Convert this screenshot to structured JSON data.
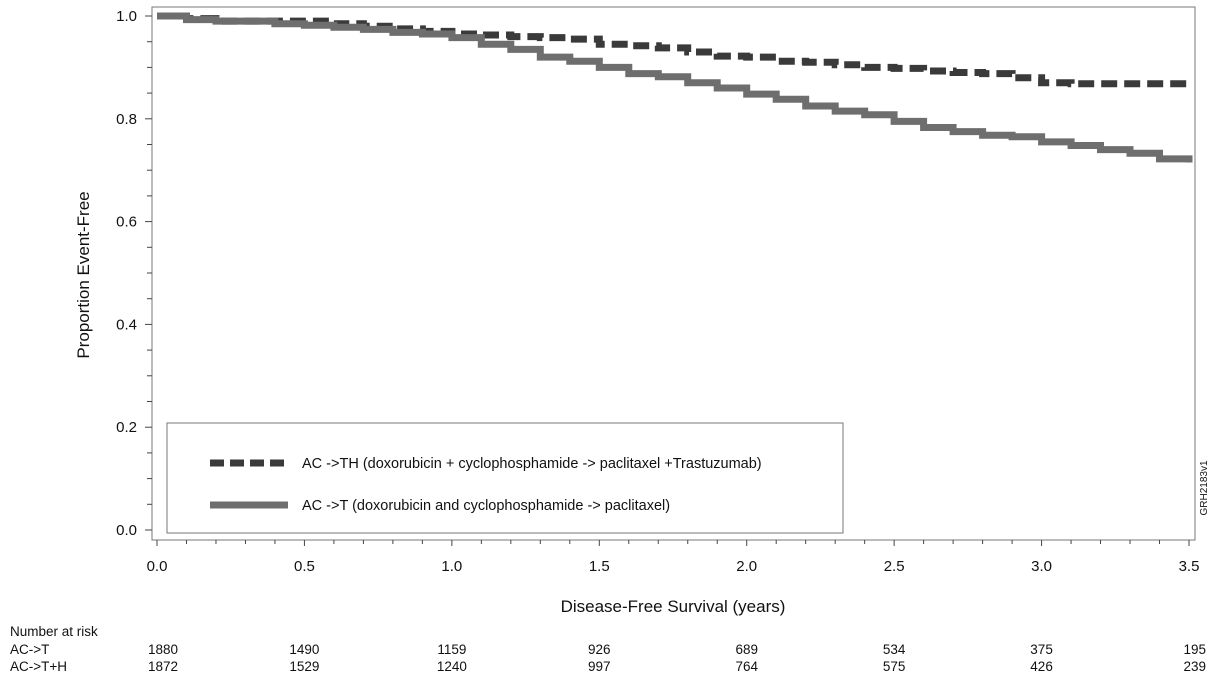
{
  "chart_data": {
    "type": "line",
    "title": "",
    "xlabel": "Disease-Free Survival (years)",
    "ylabel": "Proportion Event-Free",
    "xlim": [
      0,
      3.5
    ],
    "ylim": [
      0,
      1.0
    ],
    "x_ticks": [
      "0.0",
      "0.5",
      "1.0",
      "1.5",
      "2.0",
      "2.5",
      "3.0",
      "3.5"
    ],
    "y_ticks": [
      "0.0",
      "0.2",
      "0.4",
      "0.6",
      "0.8",
      "1.0"
    ],
    "grid": false,
    "legend_position": "bottom-left",
    "series": [
      {
        "name": "AC ->TH (doxorubicin + cyclophosphamide -> paclitaxel +Trastuzumab)",
        "style": "dashed",
        "color": "#3a3a3a",
        "points": [
          [
            0,
            1.0
          ],
          [
            0.1,
            0.995
          ],
          [
            0.2,
            0.99
          ],
          [
            0.4,
            0.99
          ],
          [
            0.5,
            0.99
          ],
          [
            0.6,
            0.985
          ],
          [
            0.7,
            0.98
          ],
          [
            0.8,
            0.975
          ],
          [
            0.9,
            0.97
          ],
          [
            1.0,
            0.965
          ],
          [
            1.1,
            0.963
          ],
          [
            1.2,
            0.96
          ],
          [
            1.3,
            0.958
          ],
          [
            1.4,
            0.955
          ],
          [
            1.5,
            0.945
          ],
          [
            1.6,
            0.942
          ],
          [
            1.7,
            0.938
          ],
          [
            1.8,
            0.93
          ],
          [
            1.9,
            0.922
          ],
          [
            2.0,
            0.92
          ],
          [
            2.1,
            0.912
          ],
          [
            2.2,
            0.91
          ],
          [
            2.3,
            0.905
          ],
          [
            2.4,
            0.9
          ],
          [
            2.5,
            0.898
          ],
          [
            2.6,
            0.893
          ],
          [
            2.7,
            0.89
          ],
          [
            2.8,
            0.888
          ],
          [
            2.9,
            0.88
          ],
          [
            3.0,
            0.87
          ],
          [
            3.1,
            0.868
          ],
          [
            3.2,
            0.868
          ],
          [
            3.3,
            0.868
          ],
          [
            3.4,
            0.868
          ],
          [
            3.5,
            0.868
          ]
        ]
      },
      {
        "name": "AC ->T (doxorubicin and cyclophosphamide -> paclitaxel)",
        "style": "solid",
        "color": "#6e6e6e",
        "points": [
          [
            0,
            1.0
          ],
          [
            0.1,
            0.993
          ],
          [
            0.2,
            0.99
          ],
          [
            0.4,
            0.985
          ],
          [
            0.5,
            0.982
          ],
          [
            0.6,
            0.978
          ],
          [
            0.7,
            0.974
          ],
          [
            0.8,
            0.968
          ],
          [
            0.9,
            0.965
          ],
          [
            1.0,
            0.958
          ],
          [
            1.1,
            0.945
          ],
          [
            1.2,
            0.935
          ],
          [
            1.3,
            0.92
          ],
          [
            1.4,
            0.912
          ],
          [
            1.5,
            0.9
          ],
          [
            1.6,
            0.888
          ],
          [
            1.7,
            0.882
          ],
          [
            1.8,
            0.87
          ],
          [
            1.9,
            0.86
          ],
          [
            2.0,
            0.848
          ],
          [
            2.1,
            0.838
          ],
          [
            2.2,
            0.825
          ],
          [
            2.3,
            0.815
          ],
          [
            2.4,
            0.808
          ],
          [
            2.5,
            0.795
          ],
          [
            2.6,
            0.783
          ],
          [
            2.7,
            0.775
          ],
          [
            2.8,
            0.768
          ],
          [
            2.9,
            0.765
          ],
          [
            3.0,
            0.755
          ],
          [
            3.1,
            0.748
          ],
          [
            3.2,
            0.74
          ],
          [
            3.3,
            0.733
          ],
          [
            3.4,
            0.722
          ],
          [
            3.5,
            0.715
          ]
        ]
      }
    ],
    "watermark": "GRH2183v1",
    "risk_table": {
      "title": "Number at risk",
      "rows": [
        {
          "label": "AC->T",
          "values": [
            "1880",
            "1490",
            "1159",
            "926",
            "689",
            "534",
            "375",
            "195"
          ]
        },
        {
          "label": "AC->T+H",
          "values": [
            "1872",
            "1529",
            "1240",
            "997",
            "764",
            "575",
            "426",
            "239"
          ]
        }
      ]
    }
  }
}
